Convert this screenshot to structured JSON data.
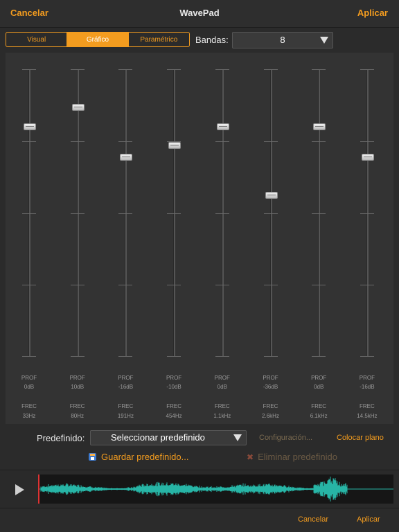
{
  "topbar": {
    "cancel": "Cancelar",
    "title": "WavePad",
    "apply": "Aplicar"
  },
  "view_tabs": [
    {
      "label": "Visual",
      "active": false
    },
    {
      "label": "Gráfico",
      "active": true
    },
    {
      "label": "Paramétrico",
      "active": false
    }
  ],
  "bands": {
    "label": "Bandas:",
    "value": "8"
  },
  "eq": {
    "gain_prefix": "PROF",
    "freq_prefix": "FREC",
    "gain_range_db": [
      -120,
      30
    ],
    "bands": [
      {
        "gain": "0dB",
        "freq": "33Hz",
        "gain_db": 0
      },
      {
        "gain": "10dB",
        "freq": "80Hz",
        "gain_db": 10
      },
      {
        "gain": "-16dB",
        "freq": "191Hz",
        "gain_db": -16
      },
      {
        "gain": "-10dB",
        "freq": "454Hz",
        "gain_db": -10
      },
      {
        "gain": "0dB",
        "freq": "1.1kHz",
        "gain_db": 0
      },
      {
        "gain": "-36dB",
        "freq": "2.6kHz",
        "gain_db": -36
      },
      {
        "gain": "0dB",
        "freq": "6.1kHz",
        "gain_db": 0
      },
      {
        "gain": "-16dB",
        "freq": "14.5kHz",
        "gain_db": -16
      }
    ]
  },
  "preset": {
    "label": "Predefinido:",
    "select_value": "Seleccionar predefinido",
    "config": "Configuración...",
    "flat": "Colocar plano",
    "save": "Guardar predefinido...",
    "delete": "Eliminar predefinido"
  },
  "footer": {
    "cancel": "Cancelar",
    "apply": "Aplicar"
  },
  "colors": {
    "accent": "#f39c1f",
    "waveform": "#27b5a6"
  }
}
